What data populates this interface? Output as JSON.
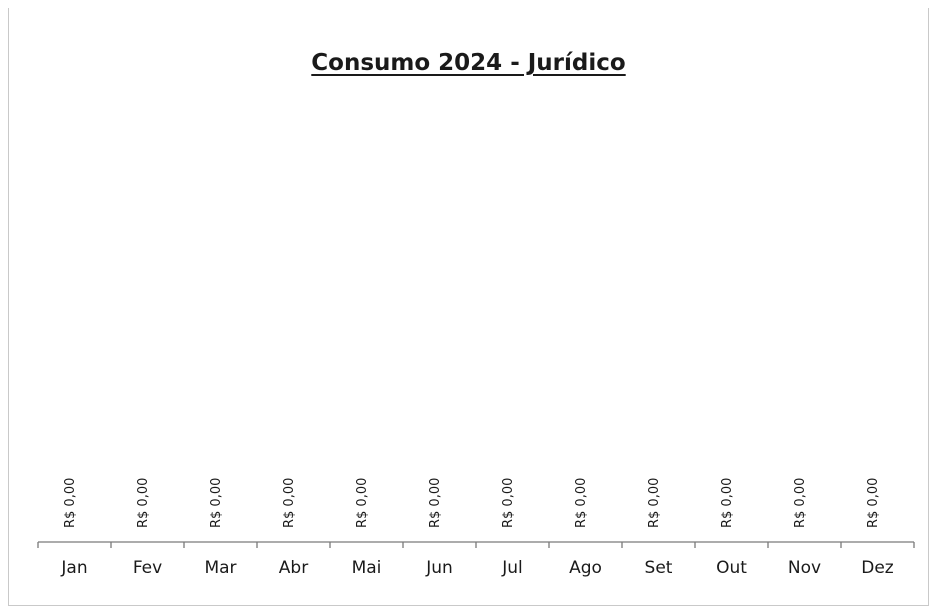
{
  "chart_data": {
    "type": "bar",
    "title": "Consumo 2024 - Jurídico",
    "xlabel": "",
    "ylabel": "",
    "categories": [
      "Jan",
      "Fev",
      "Mar",
      "Abr",
      "Mai",
      "Jun",
      "Jul",
      "Ago",
      "Set",
      "Out",
      "Nov",
      "Dez"
    ],
    "values": [
      0,
      0,
      0,
      0,
      0,
      0,
      0,
      0,
      0,
      0,
      0,
      0
    ],
    "data_labels": [
      "R$ 0,00",
      "R$ 0,00",
      "R$ 0,00",
      "R$ 0,00",
      "R$ 0,00",
      "R$ 0,00",
      "R$ 0,00",
      "R$ 0,00",
      "R$ 0,00",
      "R$ 0,00",
      "R$ 0,00",
      "R$ 0,00"
    ],
    "grid": false,
    "legend": "none",
    "colors": {
      "text": "#1a1a1a",
      "axis": "#7a7a7a",
      "border": "#c9c9c9"
    }
  }
}
